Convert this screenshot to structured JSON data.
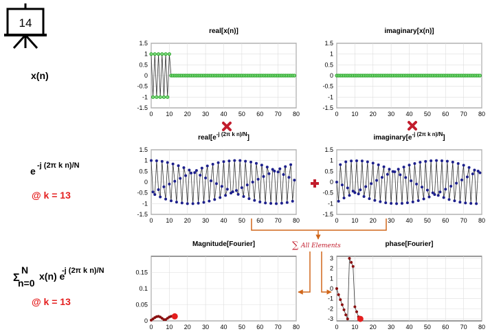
{
  "slide_number": "14",
  "left_labels": {
    "xn": "x(n)",
    "exp_base": "e",
    "exp_power": "-j (2π k n)/N",
    "at_k1": "@ k = 13",
    "sum_sigma": "Σ",
    "sum_top": "N",
    "sum_bottom": "n=0",
    "sum_expr": "x(n) e",
    "sum_power": "-j (2π k n)/N",
    "at_k2": "@ k = 13"
  },
  "sum_label": "All Elements",
  "sum_symbol": "∑",
  "colors": {
    "green": "#1a9e1a",
    "navy": "#1c1f8c",
    "darkred": "#8a1010",
    "red": "#e41f1f",
    "orange": "#d0661a"
  },
  "charts": [
    {
      "id": "x-real",
      "title": "real[x(n)]",
      "type": "line",
      "x_ticks": [
        0,
        10,
        20,
        30,
        40,
        50,
        60,
        70,
        80
      ],
      "y_ticks": [
        "1.5",
        "1",
        "0.5",
        "0",
        "-0.5",
        "-1",
        "-1.5"
      ],
      "ylim": [
        -1.5,
        1.5
      ]
    },
    {
      "id": "x-imag",
      "title": "imaginary[x(n)]",
      "type": "line",
      "x_ticks": [
        0,
        10,
        20,
        30,
        40,
        50,
        60,
        70,
        80
      ],
      "y_ticks": [
        "1.5",
        "1",
        "0.5",
        "0",
        "-0.5",
        "-1",
        "-1.5"
      ],
      "ylim": [
        -1.5,
        1.5
      ]
    },
    {
      "id": "e-real",
      "title": "real[e",
      "title_sup": "-j (2π k n)/N",
      "title_end": "]",
      "type": "line",
      "x_ticks": [
        0,
        10,
        20,
        30,
        40,
        50,
        60,
        70,
        80
      ],
      "y_ticks": [
        "1.5",
        "1",
        "0.5",
        "0",
        "-0.5",
        "-1",
        "-1.5"
      ],
      "ylim": [
        -1.5,
        1.5
      ]
    },
    {
      "id": "e-imag",
      "title": "imaginary[e",
      "title_sup": "-j (2π k n)/N",
      "title_end": "]",
      "type": "line",
      "x_ticks": [
        0,
        10,
        20,
        30,
        40,
        50,
        60,
        70,
        80
      ],
      "y_ticks": [
        "1.5",
        "1",
        "0.5",
        "0",
        "-0.5",
        "-1",
        "-1.5"
      ],
      "ylim": [
        -1.5,
        1.5
      ]
    },
    {
      "id": "mag",
      "title": "Magnitude[Fourier]",
      "type": "line",
      "x_ticks": [
        0,
        10,
        20,
        30,
        40,
        50,
        60,
        70,
        80
      ],
      "y_ticks": [
        "0.15",
        "0.1",
        "0.05",
        "0"
      ],
      "ylim": [
        0,
        0.2
      ]
    },
    {
      "id": "phase",
      "title": "phase[Fourier]",
      "type": "line",
      "x_ticks": [
        0,
        10,
        20,
        30,
        40,
        50,
        60,
        70,
        80
      ],
      "y_ticks": [
        "3",
        "2",
        "1",
        "0",
        "-1",
        "-2",
        "-3"
      ],
      "ylim": [
        -3.2,
        3.2
      ]
    }
  ],
  "chart_data": [
    {
      "type": "line",
      "title": "real[x(n)]",
      "xlim": [
        0,
        80
      ],
      "ylim": [
        -1.5,
        1.5
      ],
      "series": [
        {
          "values": [
            1,
            -1,
            1,
            -1,
            1,
            -1,
            1,
            -1,
            1,
            -1,
            1,
            0,
            0,
            0,
            0,
            0,
            0,
            0,
            0,
            0,
            0,
            0,
            0,
            0,
            0,
            0,
            0,
            0,
            0,
            0,
            0,
            0,
            0,
            0,
            0,
            0,
            0,
            0,
            0,
            0,
            0,
            0,
            0,
            0,
            0,
            0,
            0,
            0,
            0,
            0,
            0,
            0,
            0,
            0,
            0,
            0,
            0,
            0,
            0,
            0,
            0,
            0,
            0,
            0,
            0,
            0,
            0,
            0,
            0,
            0,
            0,
            0,
            0,
            0,
            0,
            0,
            0,
            0,
            0,
            0
          ]
        }
      ]
    },
    {
      "type": "line",
      "title": "imaginary[x(n)]",
      "xlim": [
        0,
        80
      ],
      "ylim": [
        -1.5,
        1.5
      ],
      "series": [
        {
          "values": [
            0,
            0,
            0,
            0,
            0,
            0,
            0,
            0,
            0,
            0,
            0,
            0,
            0,
            0,
            0,
            0,
            0,
            0,
            0,
            0,
            0,
            0,
            0,
            0,
            0,
            0,
            0,
            0,
            0,
            0,
            0,
            0,
            0,
            0,
            0,
            0,
            0,
            0,
            0,
            0,
            0,
            0,
            0,
            0,
            0,
            0,
            0,
            0,
            0,
            0,
            0,
            0,
            0,
            0,
            0,
            0,
            0,
            0,
            0,
            0,
            0,
            0,
            0,
            0,
            0,
            0,
            0,
            0,
            0,
            0,
            0,
            0,
            0,
            0,
            0,
            0,
            0,
            0,
            0,
            0
          ]
        }
      ]
    },
    {
      "type": "line",
      "title": "real[e^-j (2π k n)/N]",
      "xlim": [
        0,
        80
      ],
      "ylim": [
        -1.5,
        1.5
      ],
      "series": [
        {
          "values": [
            1,
            -0.46,
            -0.58,
            0.99,
            -0.35,
            -0.69,
            0.96,
            -0.22,
            -0.79,
            0.91,
            -0.09,
            -0.87,
            0.84,
            0.04,
            -0.93,
            0.76,
            0.17,
            -0.97,
            0.67,
            0.3,
            -1,
            0.56,
            0.42,
            -1,
            0.44,
            0.54,
            -0.98,
            0.32,
            0.65,
            -0.94,
            0.19,
            0.75,
            -0.88,
            0.06,
            0.83,
            -0.81,
            -0.07,
            0.9,
            -0.72,
            -0.2,
            0.95,
            -0.62,
            -0.33,
            0.98,
            -0.51,
            -0.45,
            1,
            -0.39,
            -0.57,
            1,
            -0.26,
            -0.67,
            0.97,
            -0.13,
            -0.77,
            0.93,
            0,
            -0.85,
            0.87,
            0.13,
            -0.92,
            0.79,
            0.26,
            -0.97,
            0.7,
            0.39,
            -0.99,
            0.59,
            0.51,
            -1,
            0.47,
            0.62,
            -0.98,
            0.35,
            0.72,
            -0.95,
            0.22,
            0.81,
            -0.89,
            0.09
          ]
        }
      ]
    },
    {
      "type": "line",
      "title": "imaginary[e^-j (2π k n)/N]",
      "xlim": [
        0,
        80
      ],
      "ylim": [
        -1.5,
        1.5
      ],
      "series": [
        {
          "values": [
            0,
            -0.89,
            0.81,
            -0.13,
            -0.74,
            0.94,
            -0.27,
            -0.62,
            0.98,
            -0.42,
            -0.49,
            0.99,
            -0.55,
            -0.36,
            0.98,
            -0.67,
            -0.21,
            0.94,
            -0.77,
            -0.07,
            0.88,
            -0.85,
            0.08,
            0.8,
            -0.91,
            0.22,
            0.71,
            -0.96,
            0.36,
            0.6,
            -0.99,
            0.49,
            0.48,
            -1,
            0.6,
            0.34,
            -0.99,
            0.7,
            0.21,
            -0.96,
            0.79,
            0.06,
            -0.92,
            0.86,
            -0.09,
            -0.86,
            0.92,
            -0.23,
            -0.78,
            0.96,
            -0.37,
            -0.69,
            0.99,
            -0.5,
            -0.58,
            1,
            -0.62,
            -0.46,
            0.99,
            -0.72,
            -0.33,
            0.97,
            -0.81,
            -0.19,
            0.93,
            -0.87,
            -0.05,
            0.86,
            -0.93,
            0.1,
            0.78,
            -0.97,
            0.24,
            0.68,
            -0.99,
            0.38,
            0.56,
            -1,
            0.51,
            0.43
          ]
        }
      ]
    },
    {
      "type": "line",
      "title": "Magnitude[Fourier]",
      "xlim": [
        0,
        80
      ],
      "ylim": [
        0,
        0.2
      ],
      "series": [
        {
          "values": [
            0.002,
            0.006,
            0.01,
            0.013,
            0.014,
            0.012,
            0.008,
            0.004,
            0.004,
            0.008,
            0.012,
            0.014,
            0.015,
            0.014
          ],
          "highlight_index": 13
        }
      ]
    },
    {
      "type": "line",
      "title": "phase[Fourier]",
      "xlim": [
        0,
        80
      ],
      "ylim": [
        -3.2,
        3.2
      ],
      "series": [
        {
          "values": [
            0,
            -0.6,
            -1.1,
            -1.6,
            -2.1,
            -2.6,
            -3.0,
            3.0,
            2.6,
            2.2,
            -1.8,
            -2.3,
            -2.8,
            -3.0
          ],
          "highlight_index": 13
        }
      ]
    }
  ]
}
